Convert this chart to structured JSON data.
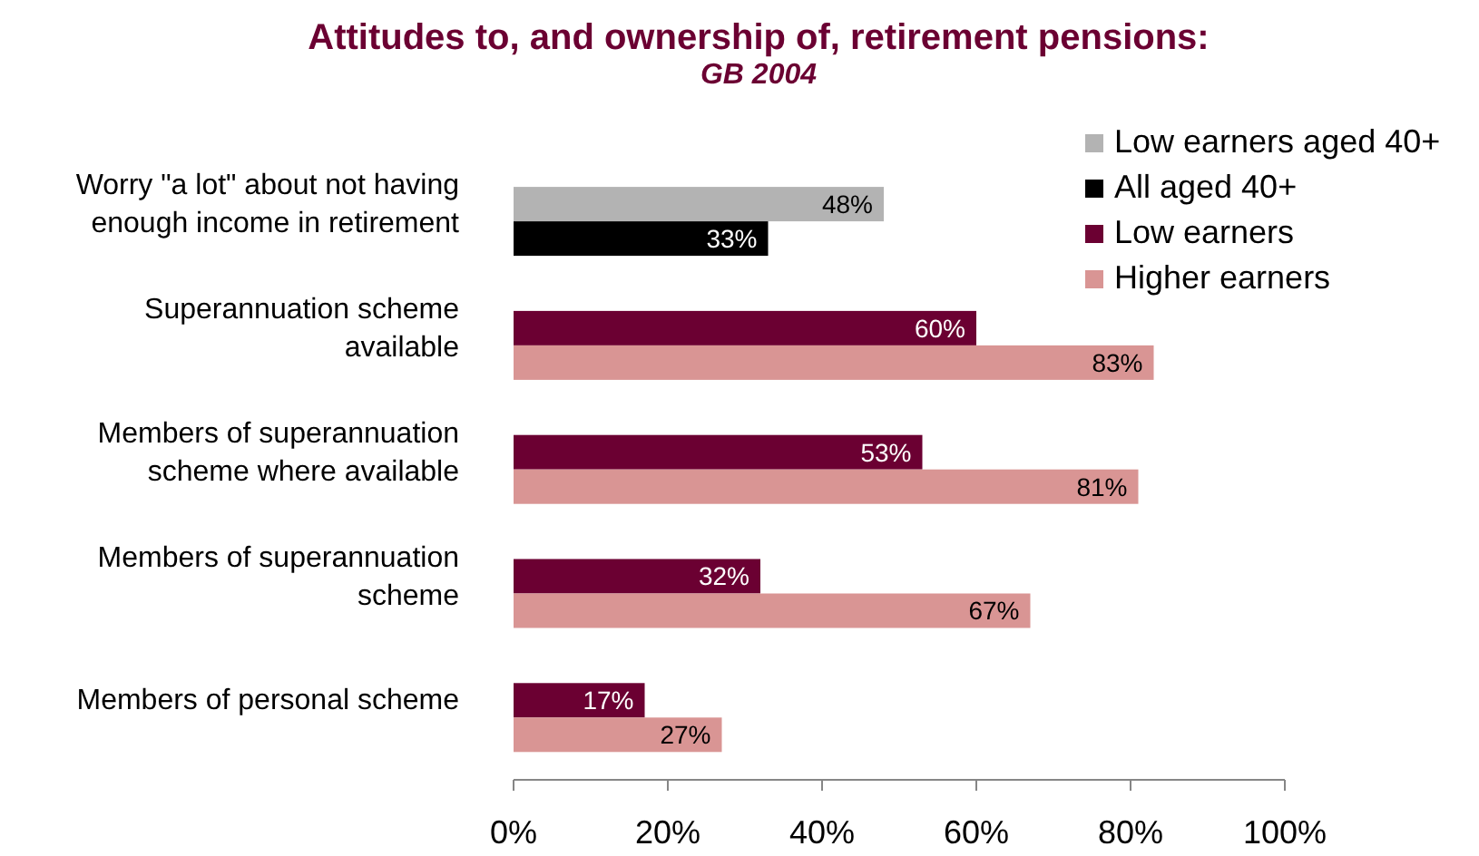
{
  "chart_data": {
    "type": "bar",
    "orientation": "horizontal",
    "title": "Attitudes to, and ownership of, retirement pensions:",
    "subtitle": "GB 2004",
    "categories": [
      "Worry \"a lot\" about not having enough income in retirement",
      "Superannuation scheme available",
      "Members of superannuation scheme where available",
      "Members of superannuation scheme",
      "Members of personal scheme"
    ],
    "series": [
      {
        "name": "Low earners aged 40+",
        "color": "#b3b3b3",
        "values": [
          48,
          null,
          null,
          null,
          null
        ],
        "value_labels": [
          "48%",
          null,
          null,
          null,
          null
        ]
      },
      {
        "name": "All aged 40+",
        "color": "#000000",
        "values": [
          33,
          null,
          null,
          null,
          null
        ],
        "value_labels": [
          "33%",
          null,
          null,
          null,
          null
        ]
      },
      {
        "name": "Low earners",
        "color": "#6b0032",
        "values": [
          null,
          60,
          53,
          32,
          17
        ],
        "value_labels": [
          null,
          "60%",
          "53%",
          "32%",
          "17%"
        ]
      },
      {
        "name": "Higher earners",
        "color": "#d99594",
        "values": [
          null,
          83,
          81,
          67,
          27
        ],
        "value_labels": [
          null,
          "83%",
          "81%",
          "67%",
          "27%"
        ]
      }
    ],
    "xlim": [
      0,
      100
    ],
    "xticks": [
      {
        "value": 0,
        "label": "0%"
      },
      {
        "value": 20,
        "label": "20%"
      },
      {
        "value": 40,
        "label": "40%"
      },
      {
        "value": 60,
        "label": "60%"
      },
      {
        "value": 80,
        "label": "80%"
      },
      {
        "value": 100,
        "label": "100%"
      }
    ],
    "grid": false,
    "legend": "top right"
  }
}
